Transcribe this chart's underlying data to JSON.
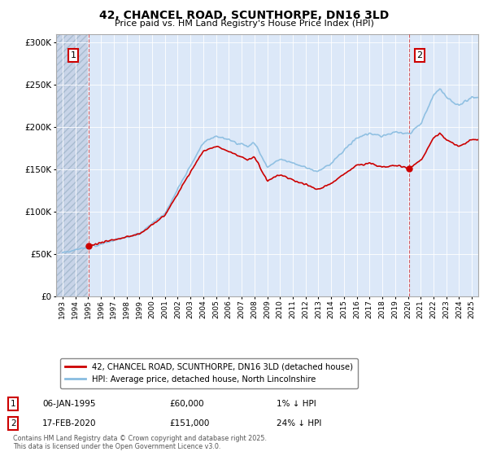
{
  "title": "42, CHANCEL ROAD, SCUNTHORPE, DN16 3LD",
  "subtitle": "Price paid vs. HM Land Registry's House Price Index (HPI)",
  "legend_line1": "42, CHANCEL ROAD, SCUNTHORPE, DN16 3LD (detached house)",
  "legend_line2": "HPI: Average price, detached house, North Lincolnshire",
  "annotation1_date": "06-JAN-1995",
  "annotation1_price": "£60,000",
  "annotation1_hpi": "1% ↓ HPI",
  "annotation2_date": "17-FEB-2020",
  "annotation2_price": "£151,000",
  "annotation2_hpi": "24% ↓ HPI",
  "footer": "Contains HM Land Registry data © Crown copyright and database right 2025.\nThis data is licensed under the Open Government Licence v3.0.",
  "hatch_color": "#c8d4e8",
  "plot_bg": "#dce8f8",
  "grid_color": "#ffffff",
  "red_line_color": "#cc0000",
  "blue_line_color": "#88bce0",
  "marker1_x": 1995.03,
  "marker1_y": 60000,
  "marker2_x": 2020.12,
  "marker2_y": 151000,
  "vline1_x": 1995.03,
  "vline2_x": 2020.12,
  "ylim": [
    0,
    310000
  ],
  "xlim": [
    1992.5,
    2025.5
  ]
}
